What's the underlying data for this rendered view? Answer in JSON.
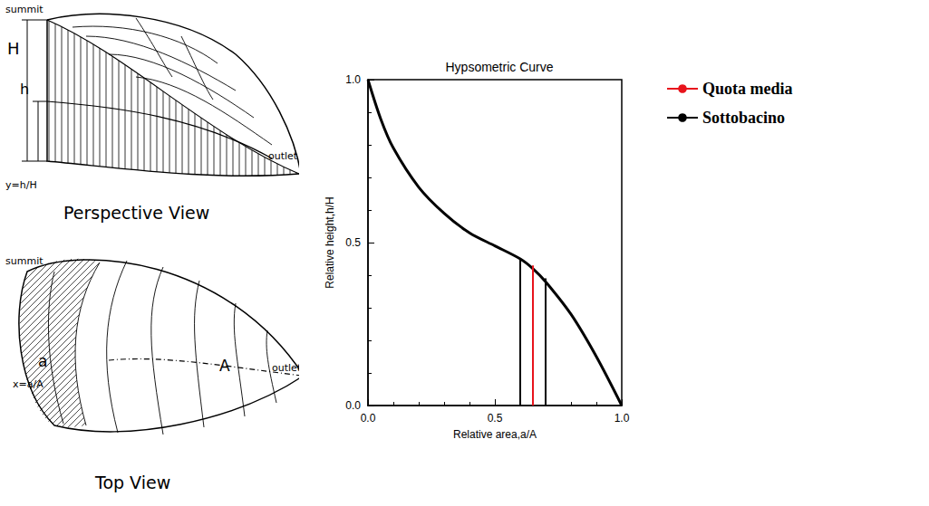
{
  "diagrams": {
    "perspective_view": {
      "title": "Perspective View",
      "summit": "summit",
      "total_height": "H",
      "height": "h",
      "outlet": "outlet",
      "formula": "y=h/H"
    },
    "top_view": {
      "title": "Top View",
      "summit": "summit",
      "area": "a",
      "total_area": "A",
      "outlet": "outlet",
      "formula": "x=a/A"
    }
  },
  "chart_data": {
    "type": "line",
    "title": "Hypsometric Curve",
    "x_label": "Relative area,a/A",
    "y_label": "Relative height,h/H",
    "xlim": [
      0,
      1
    ],
    "xticks": [
      {
        "value": 0,
        "label": "0.0"
      },
      {
        "value": 0.5,
        "label": "0.5"
      },
      {
        "value": 1,
        "label": "1.0"
      }
    ],
    "ylim": [
      0,
      1
    ],
    "yticks": [
      {
        "value": 0,
        "label": "0.0"
      },
      {
        "value": 0.5,
        "label": "0.5"
      },
      {
        "value": 1,
        "label": "1.0"
      }
    ],
    "grid": false,
    "legend": "right",
    "series": [
      {
        "color": "#000000",
        "x": [
          0,
          0.05,
          0.1,
          0.2,
          0.3,
          0.4,
          0.5,
          0.6,
          0.65,
          0.7,
          0.8,
          0.9,
          1.0
        ],
        "values": [
          1.0,
          0.88,
          0.79,
          0.67,
          0.59,
          0.53,
          0.49,
          0.45,
          0.42,
          0.38,
          0.28,
          0.15,
          0.0
        ]
      },
      {
        "name": "Quota media",
        "color": "#e8141c",
        "x": [
          0.65,
          0.65
        ],
        "values": [
          0,
          0.43
        ]
      },
      {
        "name": "Sottobacino",
        "color": "#000000",
        "x": [
          0.6,
          0.6,
          null,
          0.7,
          0.7
        ],
        "values": [
          0,
          0.45,
          null,
          0,
          0.39
        ]
      }
    ]
  }
}
